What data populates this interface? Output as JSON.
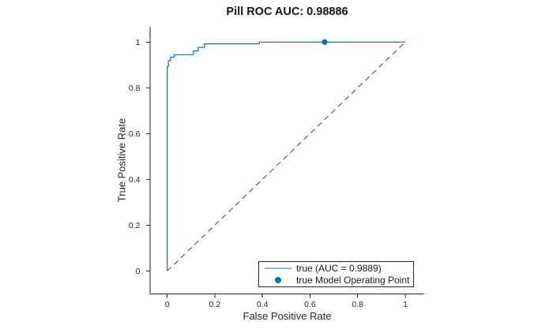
{
  "chart_data": {
    "type": "line",
    "title": "Pill ROC AUC: 0.98886",
    "xlabel": "False Positive Rate",
    "ylabel": "True Positive Rate",
    "xlim": [
      -0.072,
      1.078
    ],
    "ylim": [
      -0.101,
      1.067
    ],
    "grid": false,
    "box": false,
    "x_ticks": {
      "values": [
        0,
        0.2,
        0.4,
        0.6,
        0.8,
        1
      ],
      "labels": [
        "0",
        "0.2",
        "0.4",
        "0.6",
        "0.8",
        "1"
      ]
    },
    "y_ticks": {
      "values": [
        0,
        0.2,
        0.4,
        0.6,
        0.8,
        1
      ],
      "labels": [
        "0",
        "0.2",
        "0.4",
        "0.6",
        "0.8",
        "1"
      ]
    },
    "series": [
      {
        "id": "reference-diagonal",
        "type": "line",
        "style": "dashed",
        "color": "#404040",
        "width": 1,
        "points": [
          [
            0,
            0
          ],
          [
            1,
            1
          ]
        ]
      },
      {
        "id": "roc-curve-true",
        "type": "line",
        "style": "solid",
        "color": "#0072BD",
        "width": 1.2,
        "points": [
          [
            0,
            0
          ],
          [
            0,
            0.893
          ],
          [
            0.005,
            0.893
          ],
          [
            0.005,
            0.919
          ],
          [
            0.014,
            0.919
          ],
          [
            0.014,
            0.934
          ],
          [
            0.03,
            0.934
          ],
          [
            0.03,
            0.945
          ],
          [
            0.11,
            0.945
          ],
          [
            0.11,
            0.961
          ],
          [
            0.13,
            0.961
          ],
          [
            0.13,
            0.977
          ],
          [
            0.156,
            0.977
          ],
          [
            0.156,
            0.992
          ],
          [
            0.387,
            0.992
          ],
          [
            0.387,
            1
          ],
          [
            1,
            1
          ]
        ]
      },
      {
        "id": "operating-point",
        "type": "scatter",
        "color": "#0072BD",
        "marker_radius": 3.6,
        "points": [
          [
            0.661,
            1
          ]
        ]
      }
    ],
    "legend": {
      "position": "inside-bottom-right",
      "entries": [
        {
          "label": "true (AUC = 0.9889)",
          "marker": "line",
          "sample_color": "#8FBCDF"
        },
        {
          "label": "true Model Operating Point",
          "marker": "dot",
          "sample_color": "#0072BD"
        }
      ]
    },
    "colors": {
      "axis": "#262626",
      "tick_text": "#262626"
    }
  }
}
